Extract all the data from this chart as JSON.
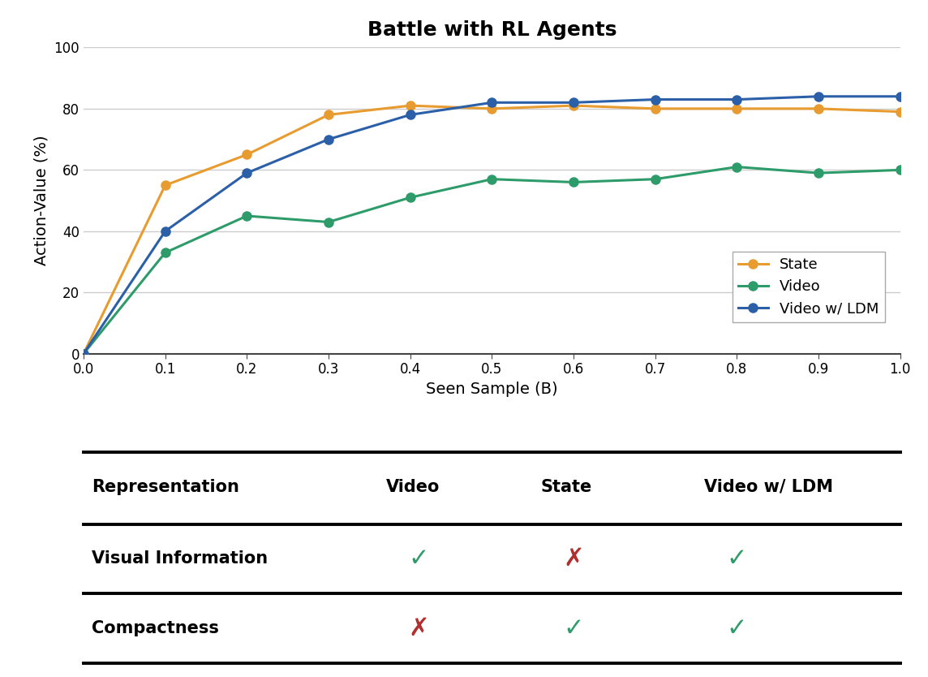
{
  "title": "Battle with RL Agents",
  "xlabel": "Seen Sample (B)",
  "ylabel": "Action-Value (%)",
  "xlim": [
    0,
    1.0
  ],
  "ylim": [
    0,
    100
  ],
  "xticks": [
    0,
    0.1,
    0.2,
    0.3,
    0.4,
    0.5,
    0.6,
    0.7,
    0.8,
    0.9,
    1.0
  ],
  "yticks": [
    0,
    20,
    40,
    60,
    80,
    100
  ],
  "state_x": [
    0,
    0.1,
    0.2,
    0.3,
    0.4,
    0.5,
    0.6,
    0.7,
    0.8,
    0.9,
    1.0
  ],
  "state_y": [
    0,
    55,
    65,
    78,
    81,
    80,
    81,
    80,
    80,
    80,
    79
  ],
  "video_x": [
    0,
    0.1,
    0.2,
    0.3,
    0.4,
    0.5,
    0.6,
    0.7,
    0.8,
    0.9,
    1.0
  ],
  "video_y": [
    0,
    33,
    45,
    43,
    51,
    57,
    56,
    57,
    61,
    59,
    60
  ],
  "ldm_x": [
    0,
    0.1,
    0.2,
    0.3,
    0.4,
    0.5,
    0.6,
    0.7,
    0.8,
    0.9,
    1.0
  ],
  "ldm_y": [
    0,
    40,
    59,
    70,
    78,
    82,
    82,
    83,
    83,
    84,
    84
  ],
  "state_color": "#E89B2F",
  "video_color": "#2E9B6A",
  "ldm_color": "#2B5FA8",
  "line_width": 2.2,
  "marker_size": 8,
  "legend_labels": [
    "State",
    "Video",
    "Video w/ LDM"
  ],
  "table_headers": [
    "Representation",
    "Video",
    "State",
    "Video w/ LDM"
  ],
  "table_rows": [
    [
      "Visual Information",
      "✓",
      "✗",
      "✓"
    ],
    [
      "Compactness",
      "✗",
      "✓",
      "✓"
    ]
  ],
  "check_color": "#2E9B6A",
  "cross_color": "#B03030",
  "background_color": "#ffffff",
  "grid_color": "#cccccc"
}
